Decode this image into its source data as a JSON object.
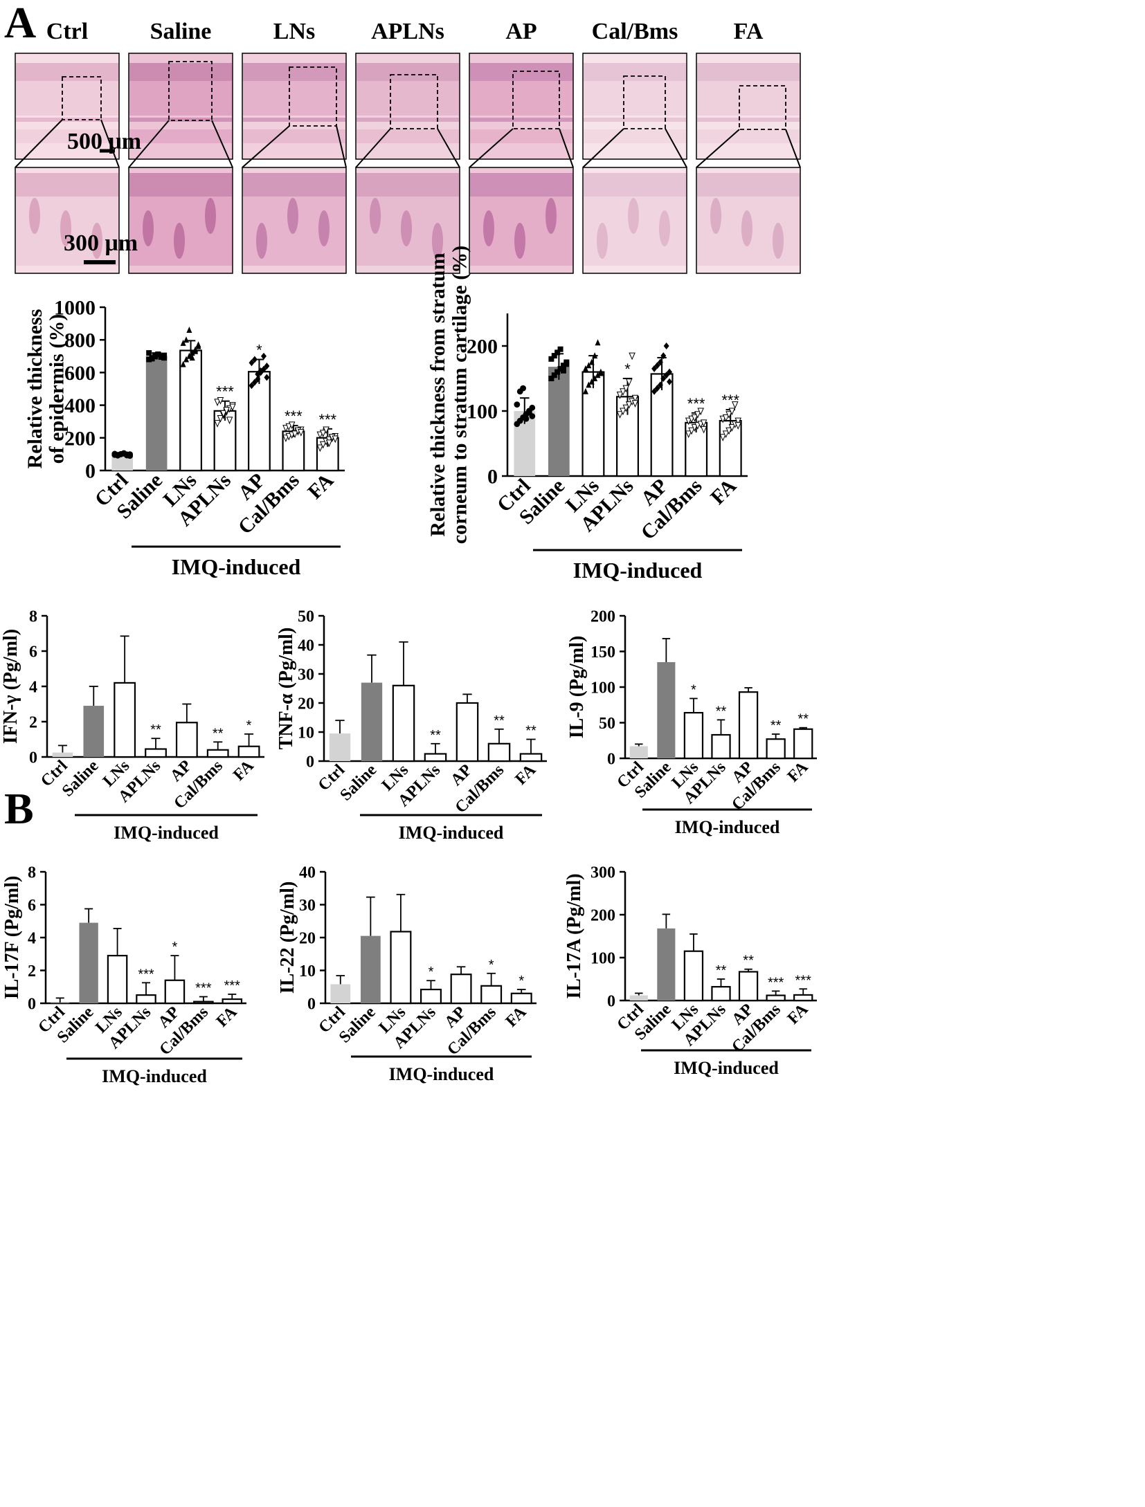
{
  "panels": {
    "a": "A",
    "b": "B"
  },
  "micrographs": {
    "groups": [
      "Ctrl",
      "Saline",
      "LNs",
      "APLNs",
      "AP",
      "Cal/Bms",
      "FA"
    ],
    "scale_low": "500 μm",
    "scale_high": "300 μm"
  },
  "group_label": "IMQ-induced",
  "colors": {
    "ctrl": "#d3d3d3",
    "saline": "#7f7f7f",
    "treated": "#ffffff",
    "stroke": "#000000"
  },
  "chart_data": [
    {
      "id": "epidermis",
      "type": "bar",
      "categories": [
        "Ctrl",
        "Saline",
        "LNs",
        "APLNs",
        "AP",
        "Cal/Bms",
        "FA"
      ],
      "values": [
        100,
        700,
        735,
        365,
        605,
        240,
        200
      ],
      "errors": [
        5,
        20,
        60,
        60,
        75,
        35,
        55
      ],
      "sig": [
        "",
        "",
        "",
        "***",
        "*",
        "***",
        "***"
      ],
      "points": [
        [
          96,
          92,
          100,
          104,
          98,
          90,
          102,
          95,
          100,
          106,
          93,
          99
        ],
        [
          680,
          690,
          700,
          710,
          695,
          705,
          720,
          685,
          698,
          712,
          700,
          690
        ],
        [
          650,
          680,
          700,
          720,
          740,
          760,
          780,
          800,
          860,
          690,
          730,
          770
        ],
        [
          290,
          320,
          340,
          360,
          380,
          400,
          420,
          430,
          350,
          370,
          310,
          390
        ],
        [
          520,
          540,
          560,
          600,
          620,
          640,
          660,
          680,
          590,
          610,
          700,
          570
        ],
        [
          200,
          210,
          220,
          230,
          240,
          250,
          260,
          270,
          280,
          225,
          245,
          235
        ],
        [
          140,
          160,
          180,
          190,
          200,
          210,
          220,
          230,
          250,
          170,
          205,
          195
        ]
      ],
      "ylabel_lines": [
        "Relative thickness",
        "of epidermis (%)"
      ],
      "ylim": [
        0,
        1000
      ],
      "yticks": [
        0,
        200,
        400,
        600,
        800,
        1000
      ]
    },
    {
      "id": "stratum",
      "type": "bar",
      "categories": [
        "Ctrl",
        "Saline",
        "LNs",
        "APLNs",
        "AP",
        "Cal/Bms",
        "FA"
      ],
      "values": [
        100,
        168,
        160,
        122,
        157,
        82,
        85
      ],
      "errors": [
        20,
        20,
        25,
        28,
        25,
        15,
        17
      ],
      "sig": [
        "",
        "",
        "",
        "*",
        "",
        "***",
        "***"
      ],
      "points": [
        [
          80,
          85,
          90,
          95,
          100,
          105,
          110,
          130,
          135,
          88,
          98,
          92
        ],
        [
          150,
          155,
          160,
          165,
          170,
          175,
          180,
          185,
          190,
          195,
          162,
          172
        ],
        [
          130,
          140,
          145,
          150,
          155,
          160,
          165,
          170,
          175,
          185,
          205,
          158
        ],
        [
          95,
          100,
          105,
          110,
          115,
          120,
          125,
          130,
          135,
          145,
          185,
          112
        ],
        [
          130,
          135,
          140,
          150,
          155,
          160,
          165,
          170,
          175,
          185,
          200,
          145
        ],
        [
          65,
          70,
          75,
          78,
          80,
          82,
          85,
          88,
          90,
          95,
          100,
          72
        ],
        [
          60,
          65,
          70,
          75,
          80,
          85,
          88,
          90,
          95,
          100,
          110,
          78
        ]
      ],
      "ylabel_lines": [
        "Relative thickness from stratum",
        "corneum to stratum cartilage (%)"
      ],
      "ylim": [
        0,
        250
      ],
      "yticks": [
        0,
        100,
        200
      ]
    },
    {
      "id": "ifn",
      "type": "bar",
      "categories": [
        "Ctrl",
        "Saline",
        "LNs",
        "APLNs",
        "AP",
        "Cal/Bms",
        "FA"
      ],
      "values": [
        0.25,
        2.9,
        4.2,
        0.45,
        1.95,
        0.4,
        0.6
      ],
      "errors": [
        0.4,
        1.1,
        2.65,
        0.6,
        1.05,
        0.45,
        0.7
      ],
      "sig": [
        "",
        "",
        "",
        "**",
        "",
        "**",
        "*"
      ],
      "ylabel": "IFN-γ (Pg/ml)",
      "ylim": [
        0,
        8
      ],
      "yticks": [
        0,
        2,
        4,
        6,
        8
      ]
    },
    {
      "id": "tnf",
      "type": "bar",
      "categories": [
        "Ctrl",
        "Saline",
        "LNs",
        "APLNs",
        "AP",
        "Cal/Bms",
        "FA"
      ],
      "values": [
        9.5,
        27,
        26,
        2.5,
        20,
        6,
        2.5
      ],
      "errors": [
        4.5,
        9.5,
        15,
        3.5,
        3,
        5,
        5
      ],
      "sig": [
        "",
        "",
        "",
        "**",
        "",
        "**",
        "**"
      ],
      "ylabel": "TNF-α (Pg/ml)",
      "ylim": [
        0,
        50
      ],
      "yticks": [
        0,
        10,
        20,
        30,
        40,
        50
      ]
    },
    {
      "id": "il9",
      "type": "bar",
      "categories": [
        "Ctrl",
        "Saline",
        "LNs",
        "APLNs",
        "AP",
        "Cal/Bms",
        "FA"
      ],
      "values": [
        17,
        135,
        64,
        33,
        93,
        27,
        41
      ],
      "errors": [
        3,
        33,
        20,
        21,
        6,
        7,
        2
      ],
      "sig": [
        "",
        "",
        "*",
        "**",
        "",
        "**",
        "**"
      ],
      "ylabel": "IL-9 (Pg/ml)",
      "ylim": [
        0,
        200
      ],
      "yticks": [
        0,
        50,
        100,
        150,
        200
      ]
    },
    {
      "id": "il17f",
      "type": "bar",
      "categories": [
        "Ctrl",
        "Saline",
        "LNs",
        "APLNs",
        "AP",
        "Cal/Bms",
        "FA"
      ],
      "values": [
        0.02,
        4.9,
        2.9,
        0.5,
        1.4,
        0.1,
        0.25
      ],
      "errors": [
        0.3,
        0.85,
        1.65,
        0.75,
        1.5,
        0.3,
        0.3
      ],
      "sig": [
        "",
        "",
        "",
        "***",
        "*",
        "***",
        "***"
      ],
      "ylabel": "IL-17F (Pg/ml)",
      "ylim": [
        0,
        8
      ],
      "yticks": [
        0,
        2,
        4,
        6,
        8
      ]
    },
    {
      "id": "il22",
      "type": "bar",
      "categories": [
        "Ctrl",
        "Saline",
        "LNs",
        "APLNs",
        "AP",
        "Cal/Bms",
        "FA"
      ],
      "values": [
        5.8,
        20.5,
        21.8,
        4.2,
        8.8,
        5.3,
        3
      ],
      "errors": [
        2.6,
        11.8,
        11.3,
        2.7,
        2.3,
        3.8,
        1.2
      ],
      "sig": [
        "",
        "",
        "",
        "*",
        "",
        "*",
        "*"
      ],
      "ylabel": "IL-22 (Pg/ml)",
      "ylim": [
        0,
        40
      ],
      "yticks": [
        0,
        10,
        20,
        30,
        40
      ]
    },
    {
      "id": "il17a",
      "type": "bar",
      "categories": [
        "Ctrl",
        "Saline",
        "LNs",
        "APLNs",
        "AP",
        "Cal/Bms",
        "FA"
      ],
      "values": [
        12,
        168,
        115,
        32,
        67,
        12,
        13
      ],
      "errors": [
        5,
        33,
        40,
        18,
        6,
        10,
        14
      ],
      "sig": [
        "",
        "",
        "",
        "**",
        "**",
        "***",
        "***"
      ],
      "ylabel": "IL-17A (Pg/ml)",
      "ylim": [
        0,
        300
      ],
      "yticks": [
        0,
        100,
        200,
        300
      ]
    }
  ]
}
